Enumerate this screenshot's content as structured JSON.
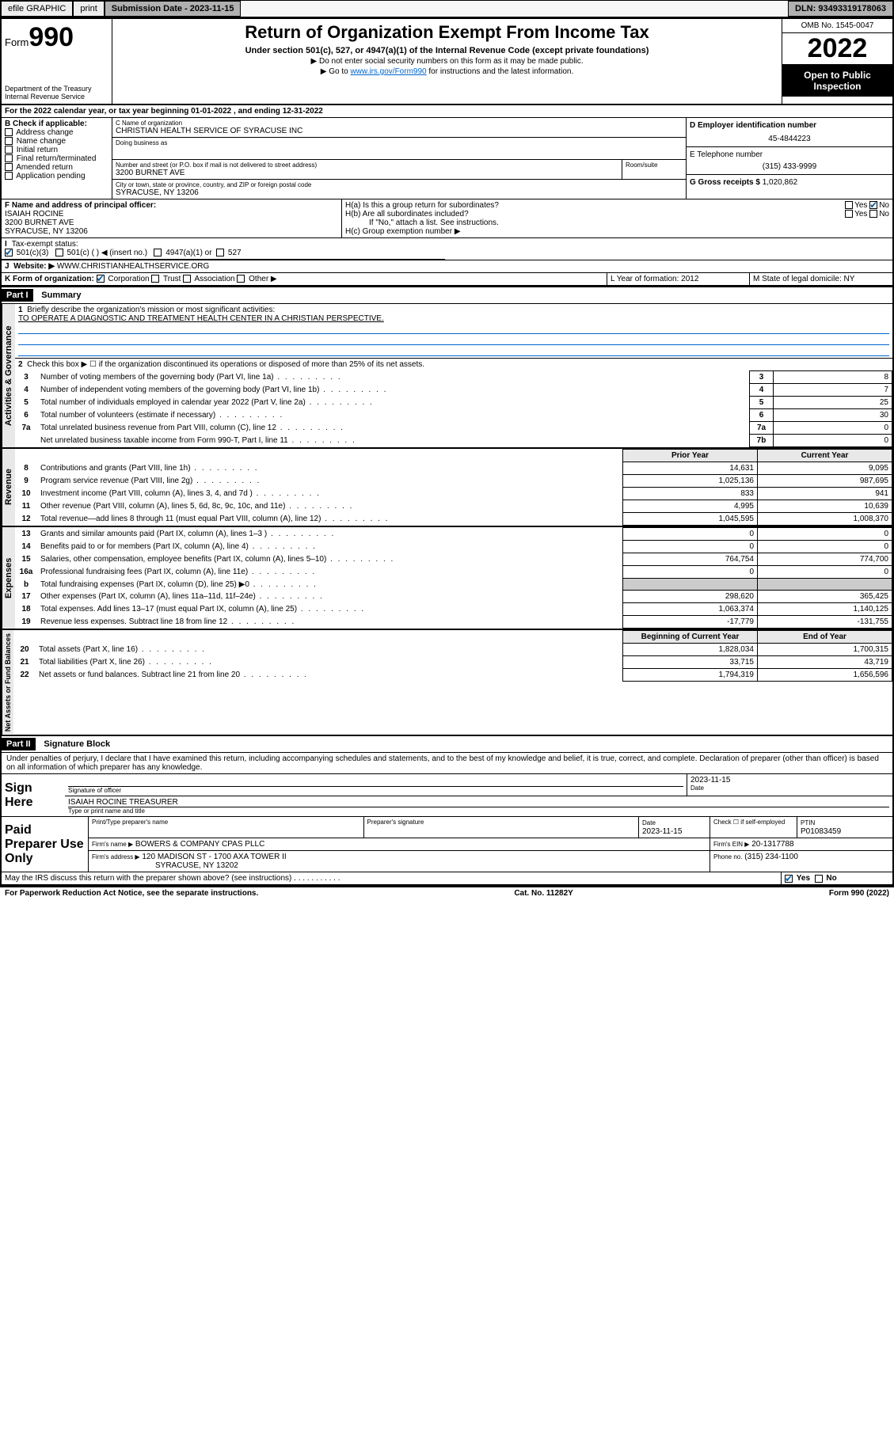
{
  "topbar": {
    "efile": "efile GRAPHIC",
    "print": "print",
    "subm_label": "Submission Date - 2023-11-15",
    "dln": "DLN: 93493319178063"
  },
  "header": {
    "form_prefix": "Form",
    "form_no": "990",
    "dept": "Department of the Treasury",
    "irs": "Internal Revenue Service",
    "title": "Return of Organization Exempt From Income Tax",
    "sub": "Under section 501(c), 527, or 4947(a)(1) of the Internal Revenue Code (except private foundations)",
    "note1": "▶ Do not enter social security numbers on this form as it may be made public.",
    "note2_pre": "▶ Go to ",
    "note2_link": "www.irs.gov/Form990",
    "note2_post": " for instructions and the latest information.",
    "omb": "OMB No. 1545-0047",
    "year": "2022",
    "open": "Open to Public Inspection"
  },
  "A": {
    "text": "For the 2022 calendar year, or tax year beginning 01-01-2022   , and ending 12-31-2022"
  },
  "B": {
    "label": "B Check if applicable:",
    "opts": [
      "Address change",
      "Name change",
      "Initial return",
      "Final return/terminated",
      "Amended return",
      "Application pending"
    ]
  },
  "C": {
    "name_lbl": "C Name of organization",
    "name": "CHRISTIAN HEALTH SERVICE OF SYRACUSE INC",
    "dba_lbl": "Doing business as",
    "addr_lbl": "Number and street (or P.O. box if mail is not delivered to street address)",
    "room_lbl": "Room/suite",
    "addr": "3200 BURNET AVE",
    "city_lbl": "City or town, state or province, country, and ZIP or foreign postal code",
    "city": "SYRACUSE, NY  13206"
  },
  "D": {
    "lbl": "D Employer identification number",
    "val": "45-4844223"
  },
  "E": {
    "lbl": "E Telephone number",
    "val": "(315) 433-9999"
  },
  "G": {
    "lbl": "G Gross receipts $",
    "val": "1,020,862"
  },
  "F": {
    "lbl": "F Name and address of principal officer:",
    "name": "ISAIAH ROCINE",
    "addr": "3200 BURNET AVE",
    "city": "SYRACUSE, NY  13206"
  },
  "H": {
    "a": "H(a)  Is this a group return for subordinates?",
    "b": "H(b)  Are all subordinates included?",
    "b_note": "If \"No,\" attach a list. See instructions.",
    "c": "H(c)  Group exemption number ▶",
    "yes": "Yes",
    "no": "No"
  },
  "I": {
    "lbl": "Tax-exempt status:",
    "o1": "501(c)(3)",
    "o2": "501(c) (  ) ◀ (insert no.)",
    "o3": "4947(a)(1) or",
    "o4": "527"
  },
  "J": {
    "lbl": "Website: ▶",
    "val": "WWW.CHRISTIANHEALTHSERVICE.ORG"
  },
  "K": {
    "lbl": "K Form of organization:",
    "o1": "Corporation",
    "o2": "Trust",
    "o3": "Association",
    "o4": "Other ▶"
  },
  "L": {
    "lbl": "L Year of formation: 2012"
  },
  "M": {
    "lbl": "M State of legal domicile: NY"
  },
  "part1": {
    "hdr": "Part I",
    "title": "Summary"
  },
  "summary": {
    "l1_lbl": "Briefly describe the organization's mission or most significant activities:",
    "l1_val": "TO OPERATE A DIAGNOSTIC AND TREATMENT HEALTH CENTER IN A CHRISTIAN PERSPECTIVE.",
    "l2": "Check this box ▶ ☐  if the organization discontinued its operations or disposed of more than 25% of its net assets.",
    "lines_gov": [
      {
        "n": "3",
        "d": "Number of voting members of the governing body (Part VI, line 1a)",
        "box": "3",
        "v": "8"
      },
      {
        "n": "4",
        "d": "Number of independent voting members of the governing body (Part VI, line 1b)",
        "box": "4",
        "v": "7"
      },
      {
        "n": "5",
        "d": "Total number of individuals employed in calendar year 2022 (Part V, line 2a)",
        "box": "5",
        "v": "25"
      },
      {
        "n": "6",
        "d": "Total number of volunteers (estimate if necessary)",
        "box": "6",
        "v": "30"
      },
      {
        "n": "7a",
        "d": "Total unrelated business revenue from Part VIII, column (C), line 12",
        "box": "7a",
        "v": "0"
      },
      {
        "n": "",
        "d": "Net unrelated business taxable income from Form 990-T, Part I, line 11",
        "box": "7b",
        "v": "0"
      }
    ],
    "col_prior": "Prior Year",
    "col_curr": "Current Year",
    "rev": [
      {
        "n": "8",
        "d": "Contributions and grants (Part VIII, line 1h)",
        "p": "14,631",
        "c": "9,095"
      },
      {
        "n": "9",
        "d": "Program service revenue (Part VIII, line 2g)",
        "p": "1,025,136",
        "c": "987,695"
      },
      {
        "n": "10",
        "d": "Investment income (Part VIII, column (A), lines 3, 4, and 7d )",
        "p": "833",
        "c": "941"
      },
      {
        "n": "11",
        "d": "Other revenue (Part VIII, column (A), lines 5, 6d, 8c, 9c, 10c, and 11e)",
        "p": "4,995",
        "c": "10,639"
      },
      {
        "n": "12",
        "d": "Total revenue—add lines 8 through 11 (must equal Part VIII, column (A), line 12)",
        "p": "1,045,595",
        "c": "1,008,370"
      }
    ],
    "exp": [
      {
        "n": "13",
        "d": "Grants and similar amounts paid (Part IX, column (A), lines 1–3 )",
        "p": "0",
        "c": "0"
      },
      {
        "n": "14",
        "d": "Benefits paid to or for members (Part IX, column (A), line 4)",
        "p": "0",
        "c": "0"
      },
      {
        "n": "15",
        "d": "Salaries, other compensation, employee benefits (Part IX, column (A), lines 5–10)",
        "p": "764,754",
        "c": "774,700"
      },
      {
        "n": "16a",
        "d": "Professional fundraising fees (Part IX, column (A), line 11e)",
        "p": "0",
        "c": "0"
      },
      {
        "n": "b",
        "d": "Total fundraising expenses (Part IX, column (D), line 25) ▶0",
        "p": "",
        "c": ""
      },
      {
        "n": "17",
        "d": "Other expenses (Part IX, column (A), lines 11a–11d, 11f–24e)",
        "p": "298,620",
        "c": "365,425"
      },
      {
        "n": "18",
        "d": "Total expenses. Add lines 13–17 (must equal Part IX, column (A), line 25)",
        "p": "1,063,374",
        "c": "1,140,125"
      },
      {
        "n": "19",
        "d": "Revenue less expenses. Subtract line 18 from line 12",
        "p": "-17,779",
        "c": "-131,755"
      }
    ],
    "col_beg": "Beginning of Current Year",
    "col_end": "End of Year",
    "net": [
      {
        "n": "20",
        "d": "Total assets (Part X, line 16)",
        "p": "1,828,034",
        "c": "1,700,315"
      },
      {
        "n": "21",
        "d": "Total liabilities (Part X, line 26)",
        "p": "33,715",
        "c": "43,719"
      },
      {
        "n": "22",
        "d": "Net assets or fund balances. Subtract line 21 from line 20",
        "p": "1,794,319",
        "c": "1,656,596"
      }
    ],
    "vert_gov": "Activities & Governance",
    "vert_rev": "Revenue",
    "vert_exp": "Expenses",
    "vert_net": "Net Assets or Fund Balances"
  },
  "part2": {
    "hdr": "Part II",
    "title": "Signature Block"
  },
  "sig": {
    "decl": "Under penalties of perjury, I declare that I have examined this return, including accompanying schedules and statements, and to the best of my knowledge and belief, it is true, correct, and complete. Declaration of preparer (other than officer) is based on all information of which preparer has any knowledge.",
    "sign_here": "Sign Here",
    "sig_officer": "Signature of officer",
    "date": "Date",
    "date_val": "2023-11-15",
    "name_title": "ISAIAH ROCINE  TREASURER",
    "type_name": "Type or print name and title",
    "paid": "Paid Preparer Use Only",
    "prep_name": "Print/Type preparer's name",
    "prep_sig": "Preparer's signature",
    "prep_date": "Date",
    "prep_date_val": "2023-11-15",
    "check_if": "Check ☐ if self-employed",
    "ptin_lbl": "PTIN",
    "ptin": "P01083459",
    "firm_name_lbl": "Firm's name    ▶",
    "firm_name": "BOWERS & COMPANY CPAS PLLC",
    "firm_ein_lbl": "Firm's EIN ▶",
    "firm_ein": "20-1317788",
    "firm_addr_lbl": "Firm's address ▶",
    "firm_addr": "120 MADISON ST - 1700 AXA TOWER II",
    "firm_city": "SYRACUSE, NY  13202",
    "phone_lbl": "Phone no.",
    "phone": "(315) 234-1100",
    "may_irs": "May the IRS discuss this return with the preparer shown above? (see instructions)   .   .   .   .   .   .   .   .   .   .   .",
    "yes": "Yes",
    "no": "No"
  },
  "footer": {
    "l": "For Paperwork Reduction Act Notice, see the separate instructions.",
    "m": "Cat. No. 11282Y",
    "r": "Form 990 (2022)"
  }
}
